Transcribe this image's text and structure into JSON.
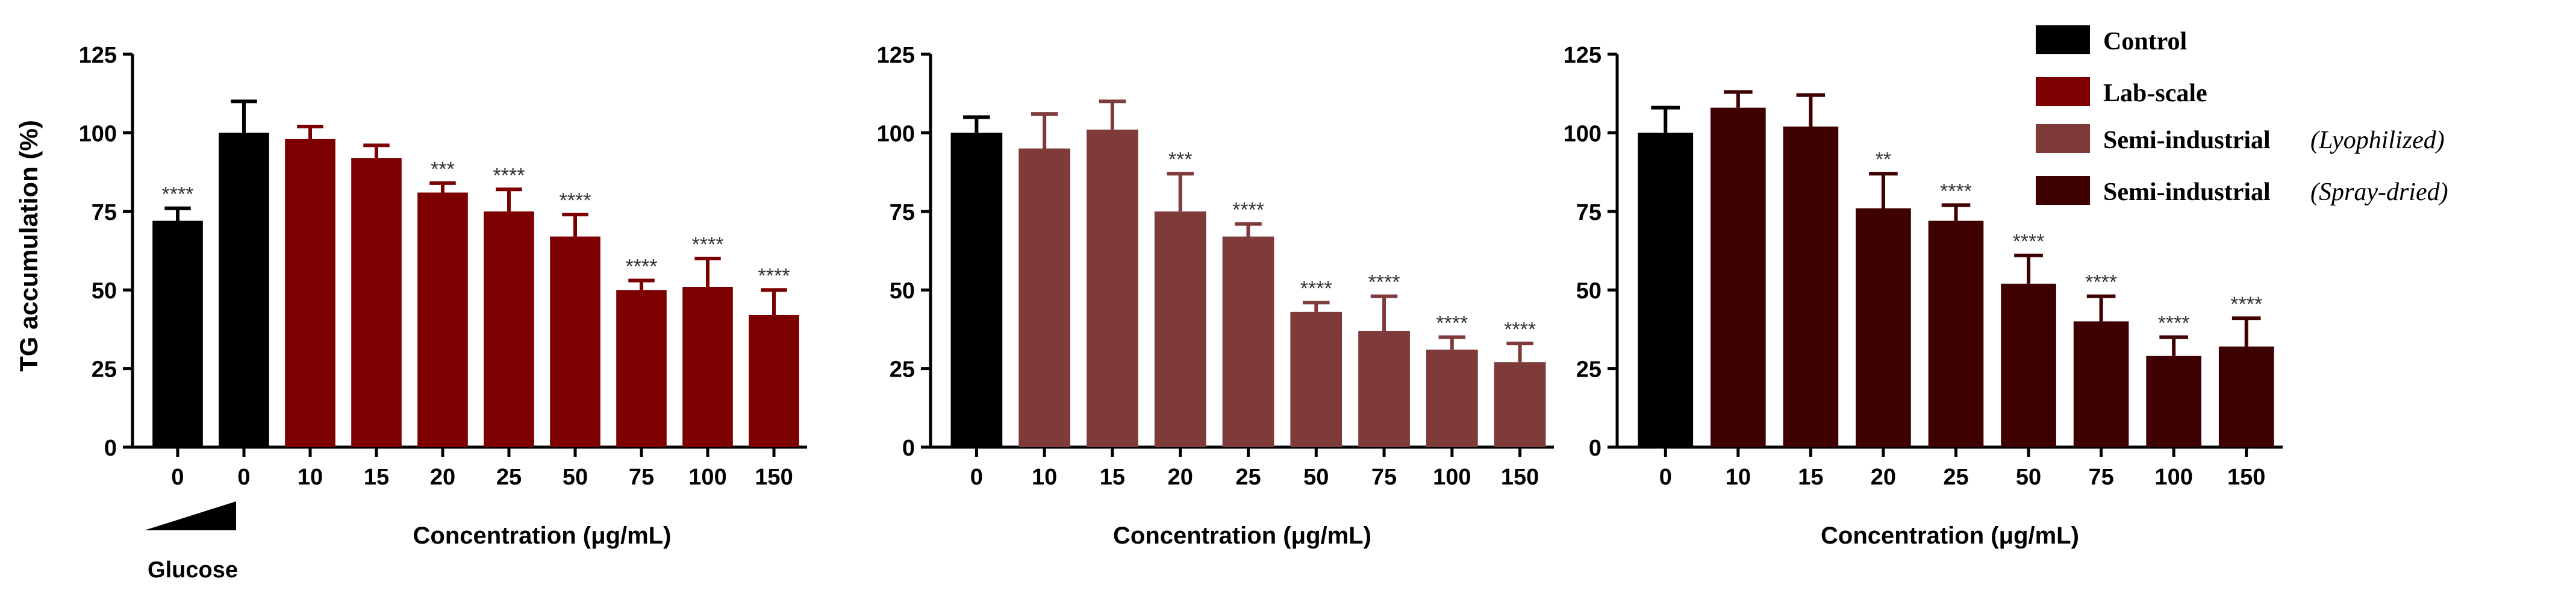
{
  "colors": {
    "control": "#000000",
    "lab_scale": "#7c0000",
    "semi_lyophilized": "#7f3a3a",
    "semi_spray_dried": "#3e0000",
    "axis": "#000000"
  },
  "legend": {
    "items": [
      {
        "name": "Control",
        "suffix": "",
        "color": "#000000"
      },
      {
        "name": "Lab-scale",
        "suffix": "",
        "color": "#7c0000"
      },
      {
        "name": "Semi-industrial",
        "suffix": "(Lyophilized)",
        "color": "#7f3a3a"
      },
      {
        "name": "Semi-industrial",
        "suffix": "(Spray-dried)",
        "color": "#3e0000"
      }
    ]
  },
  "chart_data": [
    {
      "type": "bar",
      "ylabel": "TG accumulation (%)",
      "xlabel": "Concentration (μg/mL)",
      "ylim": [
        0,
        125
      ],
      "yticks": [
        0,
        25,
        50,
        75,
        100,
        125
      ],
      "categories": [
        "0",
        "0",
        "10",
        "15",
        "20",
        "25",
        "50",
        "75",
        "100",
        "150"
      ],
      "values": [
        72,
        100,
        98,
        92,
        81,
        75,
        67,
        50,
        51,
        42
      ],
      "errors": [
        4,
        10,
        4,
        4,
        3,
        7,
        7,
        3,
        9,
        8
      ],
      "significance": [
        "****",
        "",
        "",
        "",
        "***",
        "****",
        "****",
        "****",
        "****",
        "****"
      ],
      "bar_colors": [
        "#000000",
        "#000000",
        "#7c0000",
        "#7c0000",
        "#7c0000",
        "#7c0000",
        "#7c0000",
        "#7c0000",
        "#7c0000",
        "#7c0000"
      ],
      "glucose_label": "Glucose"
    },
    {
      "type": "bar",
      "ylabel": "",
      "xlabel": "Concentration (μg/mL)",
      "ylim": [
        0,
        125
      ],
      "yticks": [
        0,
        25,
        50,
        75,
        100,
        125
      ],
      "categories": [
        "0",
        "10",
        "15",
        "20",
        "25",
        "50",
        "75",
        "100",
        "150"
      ],
      "values": [
        100,
        95,
        101,
        75,
        67,
        43,
        37,
        31,
        27
      ],
      "errors": [
        5,
        11,
        9,
        12,
        4,
        3,
        11,
        4,
        6
      ],
      "significance": [
        "",
        "",
        "",
        "***",
        "****",
        "****",
        "****",
        "****",
        "****"
      ],
      "bar_colors": [
        "#000000",
        "#7f3a3a",
        "#7f3a3a",
        "#7f3a3a",
        "#7f3a3a",
        "#7f3a3a",
        "#7f3a3a",
        "#7f3a3a",
        "#7f3a3a"
      ]
    },
    {
      "type": "bar",
      "ylabel": "",
      "xlabel": "Concentration (μg/mL)",
      "ylim": [
        0,
        125
      ],
      "yticks": [
        0,
        25,
        50,
        75,
        100,
        125
      ],
      "categories": [
        "0",
        "10",
        "15",
        "20",
        "25",
        "50",
        "75",
        "100",
        "150"
      ],
      "values": [
        100,
        108,
        102,
        76,
        72,
        52,
        40,
        29,
        32
      ],
      "errors": [
        8,
        5,
        10,
        11,
        5,
        9,
        8,
        6,
        9
      ],
      "significance": [
        "",
        "",
        "",
        "**",
        "****",
        "****",
        "****",
        "****",
        "****"
      ],
      "bar_colors": [
        "#000000",
        "#3e0000",
        "#3e0000",
        "#3e0000",
        "#3e0000",
        "#3e0000",
        "#3e0000",
        "#3e0000",
        "#3e0000"
      ]
    }
  ]
}
